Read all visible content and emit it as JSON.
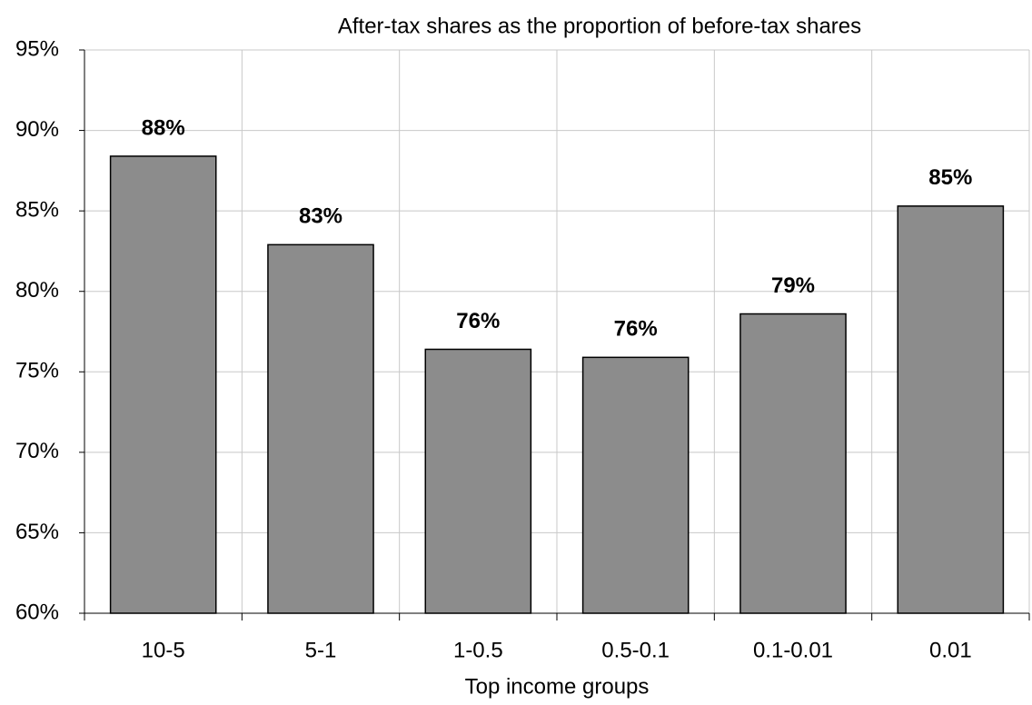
{
  "chart_data": {
    "type": "bar",
    "title": "After-tax shares as the proportion of before-tax shares",
    "x_label": "Top income groups",
    "categories": [
      "10-5",
      "5-1",
      "1-0.5",
      "0.5-0.1",
      "0.1-0.01",
      "0.01"
    ],
    "values": [
      88.4,
      82.9,
      76.4,
      75.9,
      78.6,
      85.3
    ],
    "value_labels": [
      "88%",
      "83%",
      "76%",
      "76%",
      "79%",
      "85%"
    ],
    "color": "#8c8c8c",
    "ylim": [
      60,
      95
    ],
    "yticks": [
      {
        "value": 60,
        "label": "60%"
      },
      {
        "value": 65,
        "label": "65%"
      },
      {
        "value": 70,
        "label": "70%"
      },
      {
        "value": 75,
        "label": "75%"
      },
      {
        "value": 80,
        "label": "80%"
      },
      {
        "value": 85,
        "label": "85%"
      },
      {
        "value": 90,
        "label": "90%"
      },
      {
        "value": 95,
        "label": "95%"
      }
    ],
    "grid": true
  }
}
